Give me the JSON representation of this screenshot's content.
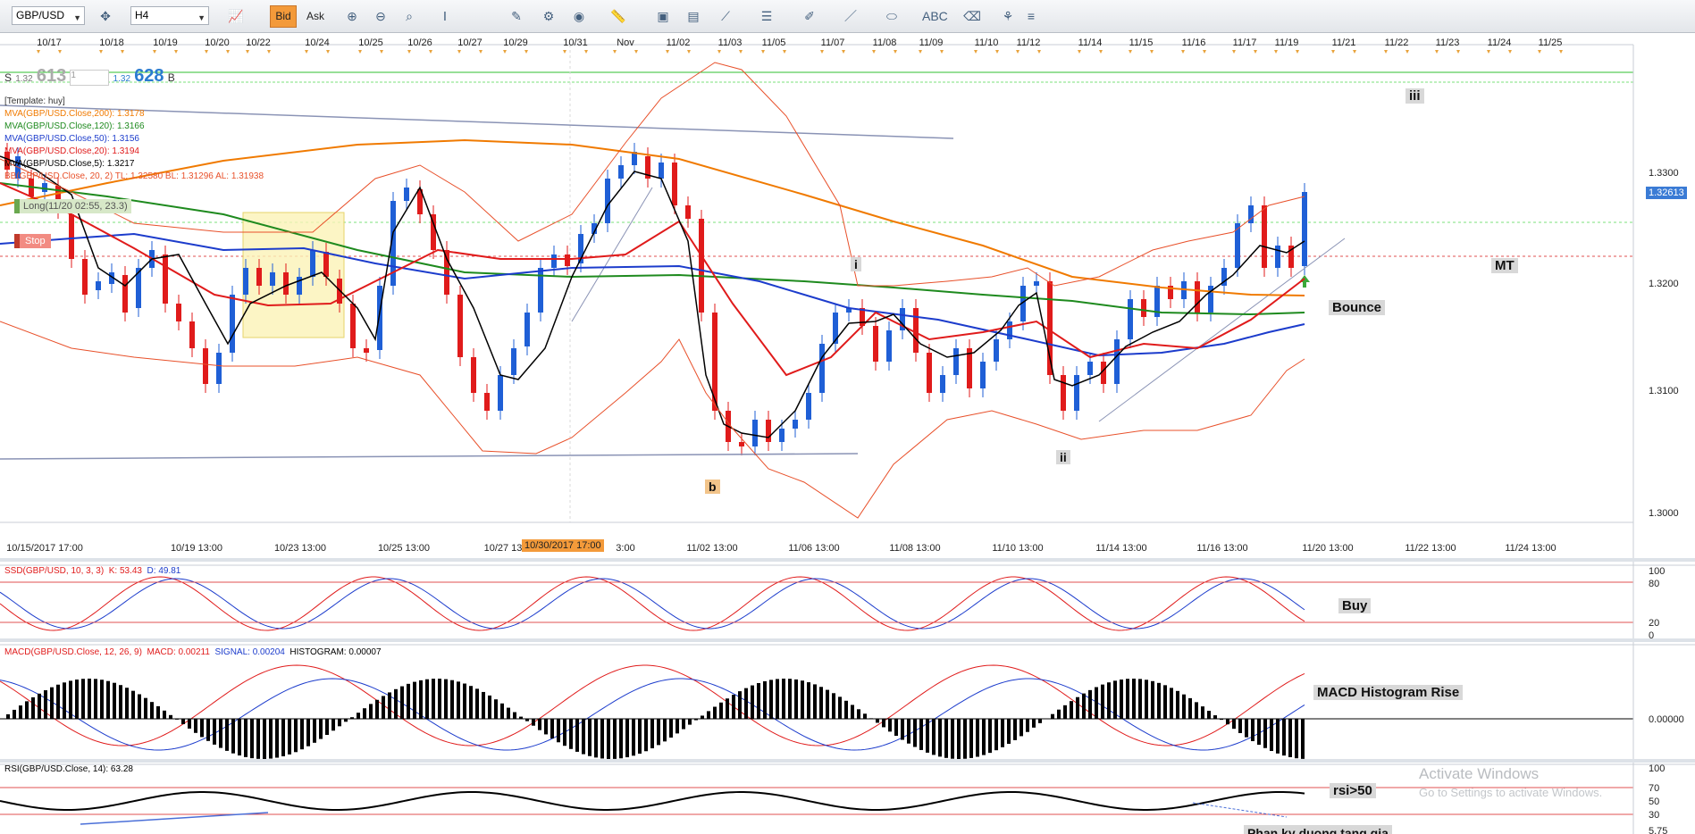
{
  "toolbar": {
    "symbol": "GBP/USD",
    "timeframe": "H4",
    "bid_label": "Bid",
    "ask_label": "Ask",
    "icons": [
      "crosshair-icon",
      "chart-type-icon",
      "zoom-in-icon",
      "zoom-out-icon",
      "indicator-icon",
      "drawing-icon",
      "globe-icon",
      "ruler-icon",
      "picture-icon",
      "template-icon",
      "line-icon",
      "bars-icon",
      "pen-icon",
      "shape-icon",
      "text-icon",
      "eraser-icon",
      "tree-icon"
    ]
  },
  "top_dates": [
    "10/17",
    "10/18",
    "10/19",
    "10/20",
    "10/22",
    "10/24",
    "10/25",
    "10/26",
    "10/27",
    "10/29",
    "10/31",
    "Nov",
    "11/02",
    "11/03",
    "11/05",
    "11/07",
    "11/08",
    "11/09",
    "11/10",
    "11/12",
    "11/14",
    "11/15",
    "11/16",
    "11/17",
    "11/19",
    "11/21",
    "11/22",
    "11/23",
    "11/24",
    "11/25"
  ],
  "bottom_dates": [
    "10/15/2017 17:00",
    "10/19 13:00",
    "10/23 13:00",
    "10/25 13:00",
    "10/27 13",
    "3:00",
    "11/02 13:00",
    "11/06 13:00",
    "11/08 13:00",
    "11/10 13:00",
    "11/14 13:00",
    "11/16 13:00",
    "11/20 13:00",
    "11/22 13:00",
    "11/24 13:00"
  ],
  "crosshair_date": "10/30/2017 17:00",
  "price_ticks": [
    "1.3300",
    "1.3200",
    "1.3100",
    "1.3000"
  ],
  "current_price": "1.32613",
  "quote": {
    "s_label": "S",
    "sell_small": "1.32",
    "sell_big": "61",
    "sell_sup": "3",
    "qty": "1",
    "buy_small": "1.32",
    "buy_big": "62",
    "buy_sup": "8",
    "b_label": "B"
  },
  "legend": {
    "template": "[Template: huy]",
    "mva200": "MVA(GBP/USD.Close,200): 1.3178",
    "mva120": "MVA(GBP/USD.Close,120): 1.3166",
    "mva50": "MVA(GBP/USD.Close,50): 1.3156",
    "mva20": "MVA(GBP/USD.Close,20): 1.3194",
    "mva5": "MVA(GBP/USD.Close,5): 1.3217",
    "bb": "BB(GBP/USD.Close, 20, 2)  TL: 1.32580  BL: 1.31296  AL: 1.31938"
  },
  "orders": {
    "long": "Long(11/20 02:55, 23.3)",
    "stop": "Stop"
  },
  "annotations": {
    "iii": "iii",
    "mt": "MT",
    "bounce": "Bounce",
    "i": "i",
    "ii": "ii",
    "b": "b",
    "buy": "Buy",
    "macd_rise": "MACD Histogram Rise",
    "rsi50": "rsi>50",
    "divergence": "Phan ky duong tang gia"
  },
  "ssd": {
    "title": "SSD(GBP/USD, 10, 3, 3)",
    "k": "K: 53.43",
    "d": "D: 49.81",
    "ticks": [
      "100",
      "80",
      "20",
      "0"
    ]
  },
  "macd": {
    "title": "MACD(GBP/USD.Close, 12, 26, 9)",
    "macd": "MACD: 0.00211",
    "signal": "SIGNAL: 0.00204",
    "hist": "HISTOGRAM: 0.00007",
    "tick": "0.00000"
  },
  "rsi": {
    "title": "RSI(GBP/USD.Close, 14): 63.28",
    "ticks": [
      "100",
      "70",
      "50",
      "30",
      "5.75"
    ]
  },
  "watermark": {
    "line1": "Activate Windows",
    "line2": "Go to Settings to activate Windows."
  },
  "colors": {
    "bull": "#1f5fd6",
    "bear": "#e01b1b",
    "mva200": "#f07a00",
    "mva120": "#1e8a1e",
    "mva50": "#1c3ccc",
    "mva20": "#e01b1b",
    "mva5": "#000000",
    "bb": "#e8502a"
  }
}
